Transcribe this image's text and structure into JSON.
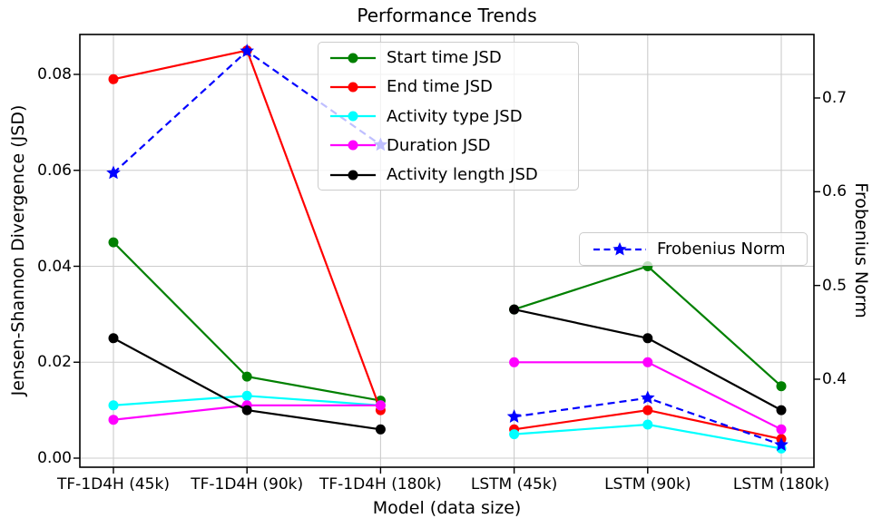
{
  "chart_data": {
    "type": "line",
    "title": "Performance Trends",
    "xlabel": "Model (data size)",
    "ylabel_left": "Jensen-Shannon Divergence (JSD)",
    "ylabel_right": "Frobenius Norm",
    "categories": [
      "TF-1D4H (45k)",
      "TF-1D4H (90k)",
      "TF-1D4H (180k)",
      "LSTM (45k)",
      "LSTM (90k)",
      "LSTM (180k)"
    ],
    "segments": [
      [
        0,
        1,
        2
      ],
      [
        3,
        4,
        5
      ]
    ],
    "grid": true,
    "ylim_left": [
      -0.002,
      0.0884
    ],
    "ylim_right": [
      0.306,
      0.768
    ],
    "yticks_left": {
      "labels": [
        "0.00",
        "0.02",
        "0.04",
        "0.06",
        "0.08"
      ],
      "values": [
        0,
        0.02,
        0.04,
        0.06,
        0.08
      ]
    },
    "yticks_right": {
      "labels": [
        "0.4",
        "0.5",
        "0.6",
        "0.7"
      ],
      "values": [
        0.4,
        0.5,
        0.6,
        0.7
      ]
    },
    "series": [
      {
        "name": "Start time JSD",
        "color": "#008000",
        "axis": "left",
        "marker": "circle",
        "linestyle": "solid",
        "values": [
          0.045,
          0.017,
          0.012,
          0.031,
          0.04,
          0.015
        ]
      },
      {
        "name": "End time JSD",
        "color": "#ff0000",
        "axis": "left",
        "marker": "circle",
        "linestyle": "solid",
        "values": [
          0.079,
          0.085,
          0.01,
          0.006,
          0.01,
          0.004
        ]
      },
      {
        "name": "Activity type JSD",
        "color": "#00ffff",
        "axis": "left",
        "marker": "circle",
        "linestyle": "solid",
        "values": [
          0.011,
          0.013,
          0.011,
          0.005,
          0.007,
          0.002
        ]
      },
      {
        "name": "Duration JSD",
        "color": "#ff00ff",
        "axis": "left",
        "marker": "circle",
        "linestyle": "solid",
        "values": [
          0.008,
          0.011,
          0.011,
          0.02,
          0.02,
          0.006
        ]
      },
      {
        "name": "Activity length JSD",
        "color": "#000000",
        "axis": "left",
        "marker": "circle",
        "linestyle": "solid",
        "values": [
          0.025,
          0.01,
          0.006,
          0.031,
          0.025,
          0.01
        ]
      },
      {
        "name": "Frobenius Norm",
        "color": "#0000ff",
        "axis": "right",
        "marker": "star",
        "linestyle": "dashed",
        "values": [
          0.62,
          0.75,
          0.65,
          0.36,
          0.38,
          0.33
        ]
      }
    ],
    "legend_main": {
      "entries": [
        "Start time JSD",
        "End time JSD",
        "Activity type JSD",
        "Duration JSD",
        "Activity length JSD"
      ],
      "position": "upper center"
    },
    "legend_frobenius": {
      "entries": [
        "Frobenius Norm"
      ],
      "position": "center right"
    },
    "colors": {
      "grid": "#cccccc",
      "spine": "#000000",
      "background": "#ffffff"
    }
  }
}
